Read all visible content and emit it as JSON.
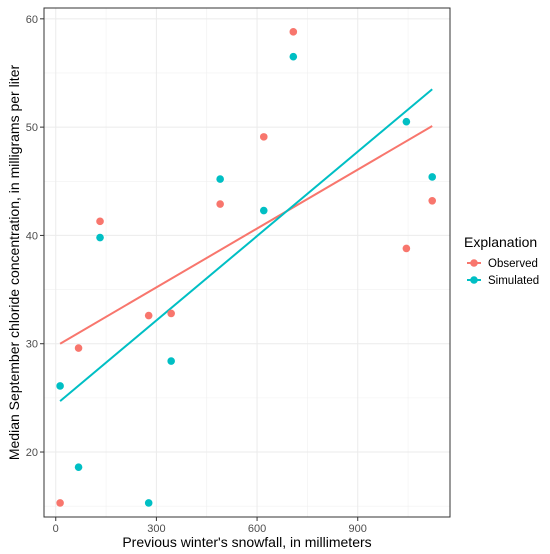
{
  "chart_data": {
    "type": "scatter",
    "xlabel": "Previous winter's snowfall, in millimeters",
    "ylabel": "Median September chloride concentration, in milligrams per liter",
    "xlim": [
      -35,
      1175
    ],
    "ylim": [
      14,
      61
    ],
    "x_ticks": [
      0,
      300,
      600,
      900
    ],
    "y_ticks": [
      20,
      30,
      40,
      50,
      60
    ],
    "grid": true,
    "legend": {
      "title": "Explanation",
      "position": "right"
    },
    "series": [
      {
        "name": "Observed",
        "color": "#F8766D",
        "points": [
          {
            "x": 13,
            "y": 15.3
          },
          {
            "x": 68,
            "y": 29.6
          },
          {
            "x": 132,
            "y": 41.3
          },
          {
            "x": 277,
            "y": 32.6
          },
          {
            "x": 344,
            "y": 32.8
          },
          {
            "x": 490,
            "y": 42.9
          },
          {
            "x": 620,
            "y": 49.1
          },
          {
            "x": 708,
            "y": 58.8
          },
          {
            "x": 1045,
            "y": 38.8
          },
          {
            "x": 1122,
            "y": 43.2
          }
        ],
        "trend": {
          "x": [
            13,
            1122
          ],
          "y": [
            30.0,
            50.1
          ]
        }
      },
      {
        "name": "Simulated",
        "color": "#00BFC4",
        "points": [
          {
            "x": 13,
            "y": 26.1
          },
          {
            "x": 68,
            "y": 18.6
          },
          {
            "x": 132,
            "y": 39.8
          },
          {
            "x": 277,
            "y": 15.3
          },
          {
            "x": 344,
            "y": 28.4
          },
          {
            "x": 490,
            "y": 45.2
          },
          {
            "x": 620,
            "y": 42.3
          },
          {
            "x": 708,
            "y": 56.5
          },
          {
            "x": 1045,
            "y": 50.5
          },
          {
            "x": 1122,
            "y": 45.4
          }
        ],
        "trend": {
          "x": [
            13,
            1122
          ],
          "y": [
            24.7,
            53.5
          ]
        }
      }
    ]
  }
}
